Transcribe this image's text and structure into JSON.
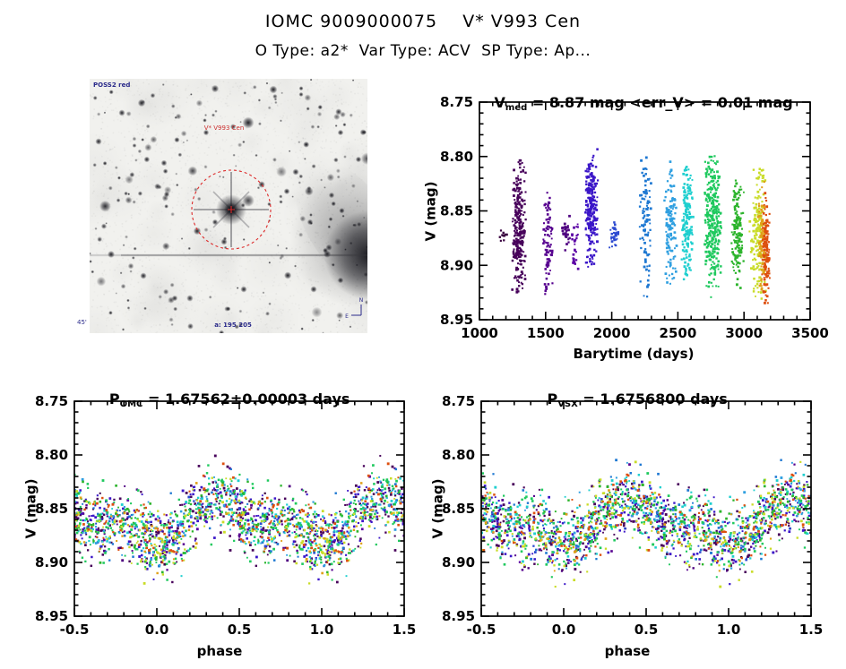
{
  "header": {
    "title": "IOMC 9009000075    V* V993 Cen",
    "subtitle": "O Type: a2*  Var Type: ACV  SP Type: Ap..."
  },
  "finder": {
    "survey_label": "POSS2 red",
    "target_label": "V* V993 Cen",
    "coord_label": "a: 195 205",
    "corner_label": "45'",
    "compass_north": "N",
    "compass_east": "E",
    "circle_color": "#dd2a2a",
    "target_label_color": "#cc3030",
    "annotation_color": "#2a2a8a"
  },
  "chart_data": [
    {
      "id": "time",
      "type": "scatter",
      "title_parts": {
        "prefix": "V",
        "sub": "med",
        "rest": " = 8.87 mag <err_V> = 0.01 mag"
      },
      "xlabel": "Barytime (days)",
      "ylabel": "V (mag)",
      "xlim": [
        1000,
        3500
      ],
      "ylim": [
        8.75,
        8.95
      ],
      "y_axis_direction": "magnitude-top-bright",
      "grid": false,
      "legend": "none",
      "xticks": [
        1000,
        1500,
        2000,
        2500,
        3000,
        3500
      ],
      "xtick_labels": [
        "1000",
        "1500",
        "2000",
        "2500",
        "3000",
        "3500"
      ],
      "yticks": [
        8.75,
        8.8,
        8.85,
        8.9,
        8.95
      ],
      "ytick_labels": [
        "8.75",
        "8.80",
        "8.85",
        "8.90",
        "8.95"
      ],
      "x_minor_div": 5,
      "y_minor_div": 5,
      "seed": 11,
      "clusters": [
        {
          "t": 1185,
          "w": 10,
          "color": "#38003f",
          "vmin": 8.862,
          "vmax": 8.88,
          "n": 10
        },
        {
          "t": 1300,
          "w": 16,
          "color": "#47005a",
          "vmin": 8.8,
          "vmax": 8.936,
          "n": 260
        },
        {
          "t": 1515,
          "w": 12,
          "color": "#56008f",
          "vmin": 8.828,
          "vmax": 8.932,
          "n": 85
        },
        {
          "t": 1655,
          "w": 10,
          "color": "#4e0080",
          "vmin": 8.852,
          "vmax": 8.888,
          "n": 26
        },
        {
          "t": 1725,
          "w": 10,
          "color": "#5a00a4",
          "vmin": 8.856,
          "vmax": 8.912,
          "n": 26
        },
        {
          "t": 1845,
          "w": 16,
          "color": "#3b16c8",
          "vmin": 8.79,
          "vmax": 8.906,
          "n": 240
        },
        {
          "t": 2020,
          "w": 12,
          "color": "#2a48d0",
          "vmin": 8.856,
          "vmax": 8.886,
          "n": 30
        },
        {
          "t": 2255,
          "w": 14,
          "color": "#1e78d2",
          "vmin": 8.79,
          "vmax": 8.932,
          "n": 100
        },
        {
          "t": 2445,
          "w": 14,
          "color": "#2f9fe0",
          "vmin": 8.8,
          "vmax": 8.922,
          "n": 130
        },
        {
          "t": 2570,
          "w": 14,
          "color": "#1fcfcf",
          "vmin": 8.798,
          "vmax": 8.922,
          "n": 170
        },
        {
          "t": 2765,
          "w": 20,
          "color": "#1fc95e",
          "vmin": 8.786,
          "vmax": 8.936,
          "n": 300
        },
        {
          "t": 2950,
          "w": 16,
          "color": "#2cb42c",
          "vmin": 8.818,
          "vmax": 8.922,
          "n": 140
        },
        {
          "t": 3108,
          "w": 20,
          "color": "#c9dc28",
          "vmin": 8.798,
          "vmax": 8.94,
          "n": 170
        },
        {
          "t": 3140,
          "w": 10,
          "color": "#e0a018",
          "vmin": 8.82,
          "vmax": 8.94,
          "n": 80
        },
        {
          "t": 3165,
          "w": 10,
          "color": "#dd4f0e",
          "vmin": 8.828,
          "vmax": 8.942,
          "n": 130
        }
      ]
    },
    {
      "id": "omc",
      "type": "scatter",
      "title_parts": {
        "prefix": "P",
        "sub": "OMC",
        "rest": " = 1.67562±0.00003 days"
      },
      "xlabel": "phase",
      "ylabel": "V (mag)",
      "xlim": [
        -0.5,
        1.5
      ],
      "ylim": [
        8.75,
        8.95
      ],
      "grid": false,
      "legend": "none",
      "xticks": [
        -0.5,
        0.0,
        0.5,
        1.0,
        1.5
      ],
      "xtick_labels": [
        "-0.5",
        "0.0",
        "0.5",
        "1.0",
        "1.5"
      ],
      "yticks": [
        8.75,
        8.8,
        8.85,
        8.9,
        8.95
      ],
      "ytick_labels": [
        "8.75",
        "8.80",
        "8.85",
        "8.90",
        "8.95"
      ],
      "x_minor_div": 5,
      "y_minor_div": 5,
      "seed": 7,
      "epochs_from": "time",
      "model": {
        "mean": 8.863,
        "a1": 0.016,
        "phi1": 0.42,
        "a2": 0.007,
        "phi2": 0.08,
        "sigma": 0.016
      }
    },
    {
      "id": "vsx",
      "type": "scatter",
      "title_parts": {
        "prefix": "P",
        "sub": "VSX",
        "rest": " = 1.6756800 days"
      },
      "xlabel": "phase",
      "ylabel": "V (mag)",
      "xlim": [
        -0.5,
        1.5
      ],
      "ylim": [
        8.75,
        8.95
      ],
      "grid": false,
      "legend": "none",
      "xticks": [
        -0.5,
        0.0,
        0.5,
        1.0,
        1.5
      ],
      "xtick_labels": [
        "-0.5",
        "0.0",
        "0.5",
        "1.0",
        "1.5"
      ],
      "yticks": [
        8.75,
        8.8,
        8.85,
        8.9,
        8.95
      ],
      "ytick_labels": [
        "8.75",
        "8.80",
        "8.85",
        "8.90",
        "8.95"
      ],
      "x_minor_div": 5,
      "y_minor_div": 5,
      "seed": 13,
      "epochs_from": "time",
      "model": {
        "mean": 8.863,
        "a1": 0.016,
        "phi1": 0.42,
        "a2": 0.007,
        "phi2": 0.08,
        "sigma": 0.016
      }
    }
  ]
}
